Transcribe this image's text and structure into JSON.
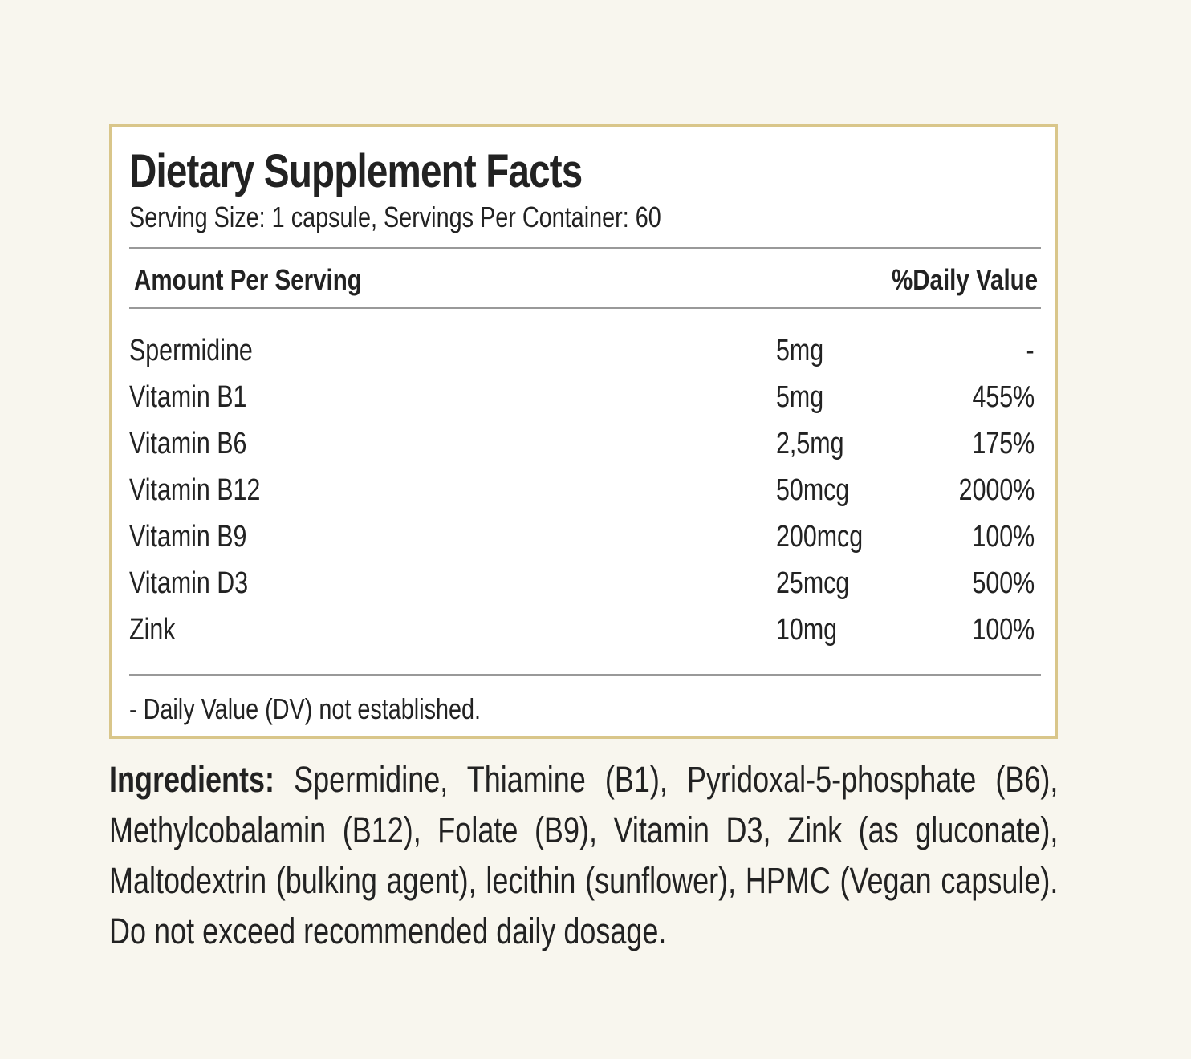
{
  "facts": {
    "title": "Dietary Supplement Facts",
    "serving": "Serving Size: 1 capsule, Servings Per Container: 60",
    "header": {
      "amount": "Amount Per Serving",
      "daily_value": "%Daily Value"
    },
    "rows": [
      [
        "Spermidine",
        "5mg",
        "-"
      ],
      [
        "Vitamin B1",
        "5mg",
        "455%"
      ],
      [
        "Vitamin B6",
        "2,5mg",
        "175%"
      ],
      [
        "Vitamin B12",
        "50mcg",
        "2000%"
      ],
      [
        "Vitamin B9",
        "200mcg",
        "100%"
      ],
      [
        "Vitamin D3",
        "25mcg",
        "500%"
      ],
      [
        "Zink",
        "10mg",
        "100%"
      ]
    ],
    "footnote": "- Daily Value (DV) not established."
  },
  "ingredients": {
    "label": "Ingredients:",
    "text": " Spermidine, Thiamine (B1), Pyridoxal-5-phosphate (B6), Methylcobalamin (B12), Folate (B9), Vitamin D3, Zink (as gluconate), Maltodextrin (bulking agent), lecithin (sunflower), HPMC (Vegan capsule). Do not exceed recommended daily dosage."
  }
}
